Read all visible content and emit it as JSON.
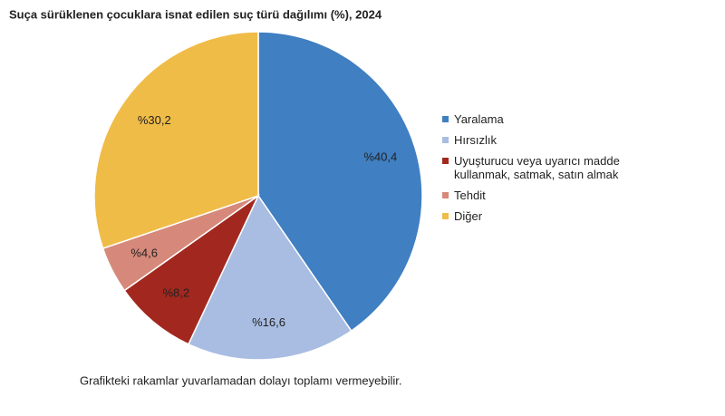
{
  "chart_data": {
    "type": "pie",
    "title": "Suça sürüklenen çocuklara isnat edilen suç türü dağılımı (%), 2024",
    "categories": [
      "Yaralama",
      "Hırsızlık",
      "Uyuşturucu veya uyarıcı madde kullanmak, satmak, satın almak",
      "Tehdit",
      "Diğer"
    ],
    "values": [
      40.4,
      16.6,
      8.2,
      4.6,
      30.2
    ],
    "value_labels": [
      "%40,4",
      "%16,6",
      "%8,2",
      "%4,6",
      "%30,2"
    ],
    "colors": [
      "#3f7fc2",
      "#a9bde3",
      "#a2281f",
      "#d6897a",
      "#f0bc48"
    ],
    "legend": "right",
    "note": "Grafikteki rakamlar yuvarlamadan dolayı toplamı vermeyebilir."
  }
}
